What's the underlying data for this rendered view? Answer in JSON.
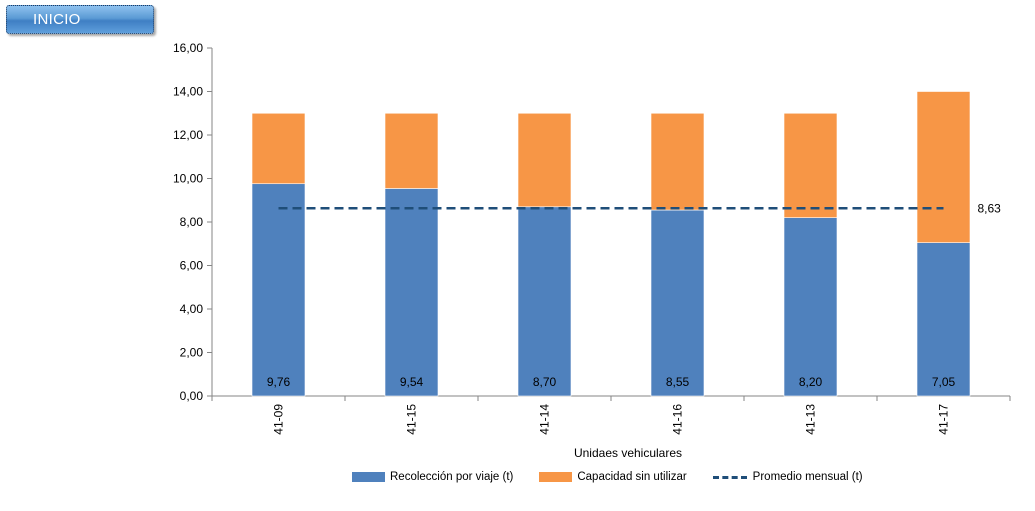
{
  "button": {
    "label": "INICIO"
  },
  "chart_data": {
    "type": "bar",
    "stacked": true,
    "categories": [
      "41-09",
      "41-15",
      "41-14",
      "41-16",
      "41-13",
      "41-17"
    ],
    "series": [
      {
        "name": "Recolección por viaje (t)",
        "values": [
          9.76,
          9.54,
          8.7,
          8.55,
          8.2,
          7.05
        ],
        "color": "#4f81bd",
        "labels": [
          "9,76",
          "9,54",
          "8,70",
          "8,55",
          "8,20",
          "7,05"
        ]
      },
      {
        "name": "Capacidad sin utilizar",
        "values": [
          3.24,
          3.46,
          4.3,
          4.45,
          4.8,
          6.95
        ],
        "color": "#f79646"
      }
    ],
    "line": {
      "name": "Promedio mensual (t)",
      "value": 8.63,
      "label": "8,63",
      "color": "#1f4e79"
    },
    "yticks": [
      "0,00",
      "2,00",
      "4,00",
      "6,00",
      "8,00",
      "10,00",
      "12,00",
      "14,00",
      "16,00"
    ],
    "ylim": [
      0,
      16
    ],
    "xlabel": "Unidaes vehiculares",
    "ylabel": "",
    "title": "",
    "grid": false,
    "legend_position": "bottom"
  }
}
